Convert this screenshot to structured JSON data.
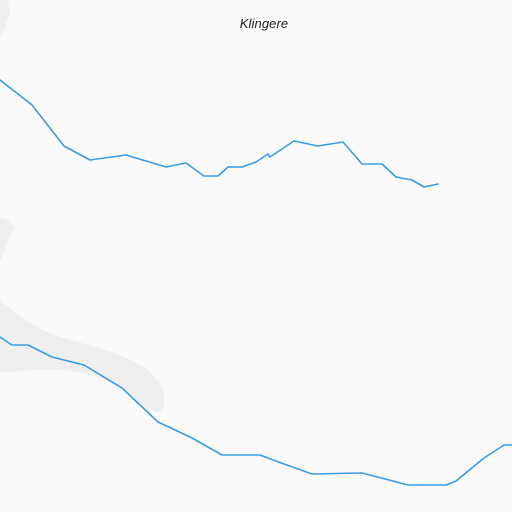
{
  "map": {
    "place_label": "Klingere",
    "colors": {
      "background": "#fafafa",
      "land_shading": "#efeff0",
      "route": "#3a9be6",
      "label": "#222222"
    }
  }
}
